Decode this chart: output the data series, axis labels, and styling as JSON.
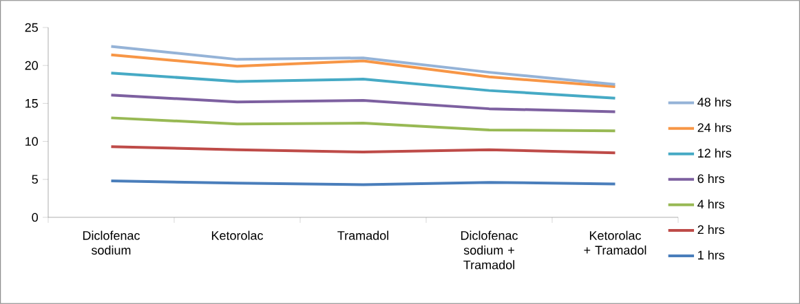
{
  "chart_data": {
    "type": "line",
    "categories": [
      "Diclofenac sodium",
      "Ketorolac",
      "Tramadol",
      "Diclofenac sodium + Tramadol",
      "Ketorolac + Tramadol"
    ],
    "series": [
      {
        "name": "1 hrs",
        "color": "#4a7ebb",
        "values": [
          4.8,
          4.5,
          4.3,
          4.6,
          4.4
        ]
      },
      {
        "name": "2 hrs",
        "color": "#be4b48",
        "values": [
          9.3,
          8.9,
          8.6,
          8.9,
          8.5
        ]
      },
      {
        "name": "4 hrs",
        "color": "#98b954",
        "values": [
          13.1,
          12.3,
          12.4,
          11.5,
          11.4
        ]
      },
      {
        "name": "6 hrs",
        "color": "#7d60a0",
        "values": [
          16.1,
          15.2,
          15.4,
          14.3,
          13.9
        ]
      },
      {
        "name": "12 hrs",
        "color": "#46aac5",
        "values": [
          19.0,
          17.9,
          18.2,
          16.7,
          15.7
        ]
      },
      {
        "name": "24 hrs",
        "color": "#f79646",
        "values": [
          21.4,
          19.9,
          20.6,
          18.5,
          17.2
        ]
      },
      {
        "name": "48 hrs",
        "color": "#95b3d7",
        "values": [
          22.5,
          20.8,
          21.0,
          19.1,
          17.5
        ]
      }
    ],
    "ylim": [
      0,
      25
    ],
    "yticks": [
      0,
      5,
      10,
      15,
      20,
      25
    ],
    "legend": "right",
    "marker": "none",
    "line_style": "solid",
    "grid": false
  }
}
